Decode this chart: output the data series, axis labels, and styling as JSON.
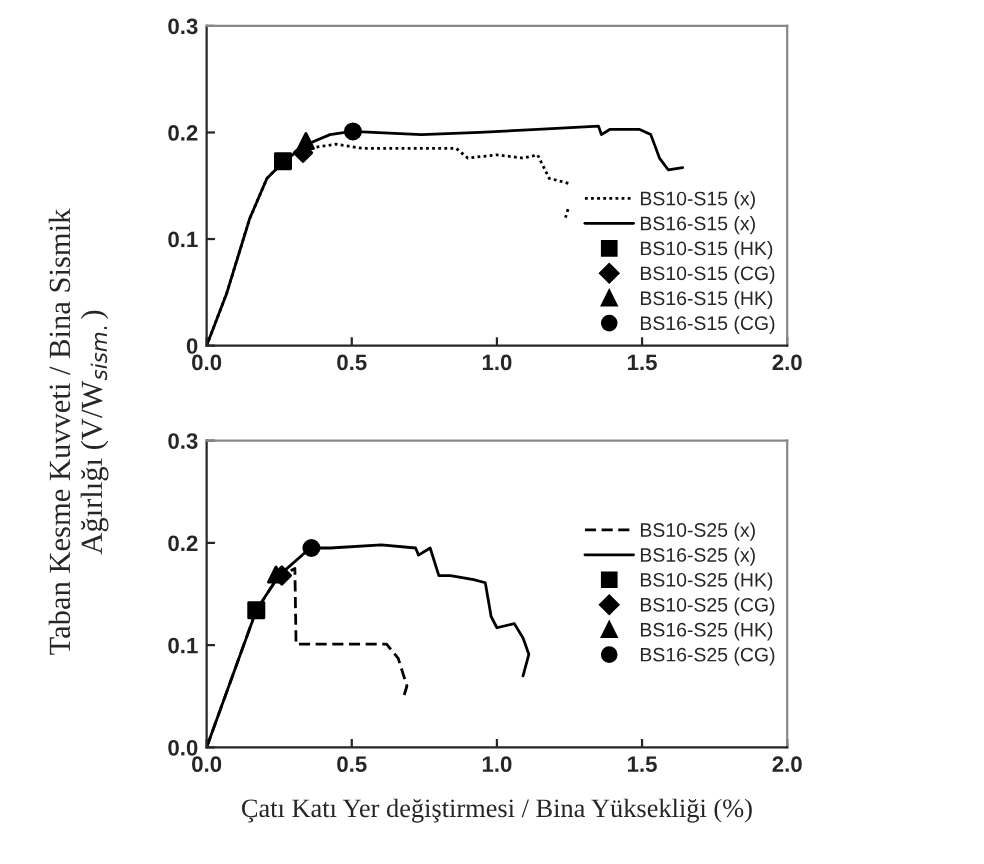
{
  "chart_data": [
    {
      "type": "line",
      "ylabel": "Taban Kesme Kuvveti / Bina Sismik\nAğırlığı (V/W$_{sism.}$)",
      "xlim": [
        0,
        2
      ],
      "ylim": [
        0,
        0.3
      ],
      "xticks": [
        {
          "value": 0,
          "label": "0.0"
        },
        {
          "value": 0.5,
          "label": "0.5"
        },
        {
          "value": 1,
          "label": "1.0"
        },
        {
          "value": 1.5,
          "label": "1.5"
        },
        {
          "value": 2,
          "label": "2.0"
        }
      ],
      "yticks": [
        0,
        0.1,
        0.2,
        0.3
      ],
      "legend": "bottom right",
      "grid": false,
      "series": [
        {
          "name": "BS10-S15 (x)",
          "type": "line",
          "line_style": "dotted",
          "color": "#000000",
          "x": [
            0,
            0.069,
            0.148,
            0.208,
            0.267,
            0.3,
            0.346,
            0.445,
            0.54,
            0.86,
            0.9,
            1.0,
            1.09,
            1.14,
            1.18,
            1.25,
            null,
            1.245,
            1.235
          ],
          "values": [
            0,
            0.049,
            0.119,
            0.157,
            0.173,
            0.18,
            0.185,
            0.189,
            0.185,
            0.185,
            0.176,
            0.179,
            0.176,
            0.179,
            0.157,
            0.152,
            null,
            0.128,
            0.119
          ]
        },
        {
          "name": "BS16-S15 (x)",
          "type": "line",
          "line_style": "solid",
          "color": "#000000",
          "x": [
            0,
            0.069,
            0.148,
            0.208,
            0.267,
            0.346,
            0.425,
            0.5,
            0.74,
            0.94,
            1.14,
            1.35,
            1.36,
            1.39,
            1.49,
            1.53,
            1.56,
            1.59,
            1.64
          ],
          "values": [
            0,
            0.049,
            0.119,
            0.157,
            0.173,
            0.189,
            0.198,
            0.201,
            0.198,
            0.2,
            0.203,
            0.206,
            0.198,
            0.203,
            0.203,
            0.198,
            0.176,
            0.165,
            0.167
          ]
        },
        {
          "name": "BS10-S15 (HK)",
          "type": "scatter",
          "marker": "square",
          "color": "#000000",
          "x": [
            0.263
          ],
          "values": [
            0.173
          ]
        },
        {
          "name": "BS10-S15 (CG)",
          "type": "scatter",
          "marker": "diamond",
          "color": "#000000",
          "x": [
            0.332
          ],
          "values": [
            0.181
          ]
        },
        {
          "name": "BS16-S15 (HK)",
          "type": "scatter",
          "marker": "triangle",
          "color": "#000000",
          "x": [
            0.342
          ],
          "values": [
            0.192
          ]
        },
        {
          "name": "BS16-S15 (CG)",
          "type": "scatter",
          "marker": "circle",
          "color": "#000000",
          "x": [
            0.504
          ],
          "values": [
            0.201
          ]
        }
      ]
    },
    {
      "type": "line",
      "xlabel": "Çatı Katı Yer değiştirmesi / Bina Yüksekliği (%)",
      "xlim": [
        0,
        2
      ],
      "ylim": [
        0,
        0.3
      ],
      "xticks": [
        {
          "value": 0,
          "label": "0.0"
        },
        {
          "value": 0.5,
          "label": "0.5"
        },
        {
          "value": 1,
          "label": "1.0"
        },
        {
          "value": 1.5,
          "label": "1.5"
        },
        {
          "value": 2,
          "label": "2.0"
        }
      ],
      "yticks": [
        {
          "value": 0,
          "label": "0.0"
        },
        0.1,
        0.2,
        0.3
      ],
      "legend": "right",
      "grid": false,
      "series": [
        {
          "name": "BS10-S25 (x)",
          "type": "line",
          "line_style": "dashed",
          "color": "#000000",
          "x": [
            0,
            0.171,
            0.249,
            0.279,
            0.304,
            0.308,
            0.62,
            0.66,
            0.69,
            0.676
          ],
          "values": [
            0,
            0.134,
            0.168,
            0.171,
            0.175,
            0.101,
            0.101,
            0.087,
            0.06,
            0.047
          ]
        },
        {
          "name": "BS16-S25 (x)",
          "type": "line",
          "line_style": "solid",
          "color": "#000000",
          "x": [
            0,
            0.171,
            0.249,
            0.357,
            0.426,
            0.602,
            0.72,
            0.73,
            0.77,
            0.8,
            0.84,
            0.92,
            0.96,
            0.98,
            1.0,
            1.06,
            1.09,
            1.11,
            1.09
          ],
          "values": [
            0,
            0.134,
            0.168,
            0.195,
            0.195,
            0.198,
            0.195,
            0.188,
            0.195,
            0.168,
            0.168,
            0.164,
            0.161,
            0.128,
            0.117,
            0.121,
            0.107,
            0.091,
            0.07
          ]
        },
        {
          "name": "BS10-S25 (HK)",
          "type": "scatter",
          "marker": "square",
          "color": "#000000",
          "x": [
            0.171
          ],
          "values": [
            0.134
          ]
        },
        {
          "name": "BS10-S25 (CG)",
          "type": "scatter",
          "marker": "diamond",
          "color": "#000000",
          "x": [
            0.259
          ],
          "values": [
            0.168
          ]
        },
        {
          "name": "BS16-S25 (HK)",
          "type": "scatter",
          "marker": "triangle",
          "color": "#000000",
          "x": [
            0.239
          ],
          "values": [
            0.169
          ]
        },
        {
          "name": "BS16-S25 (CG)",
          "type": "scatter",
          "marker": "circle",
          "color": "#000000",
          "x": [
            0.361
          ],
          "values": [
            0.195
          ]
        }
      ]
    }
  ]
}
